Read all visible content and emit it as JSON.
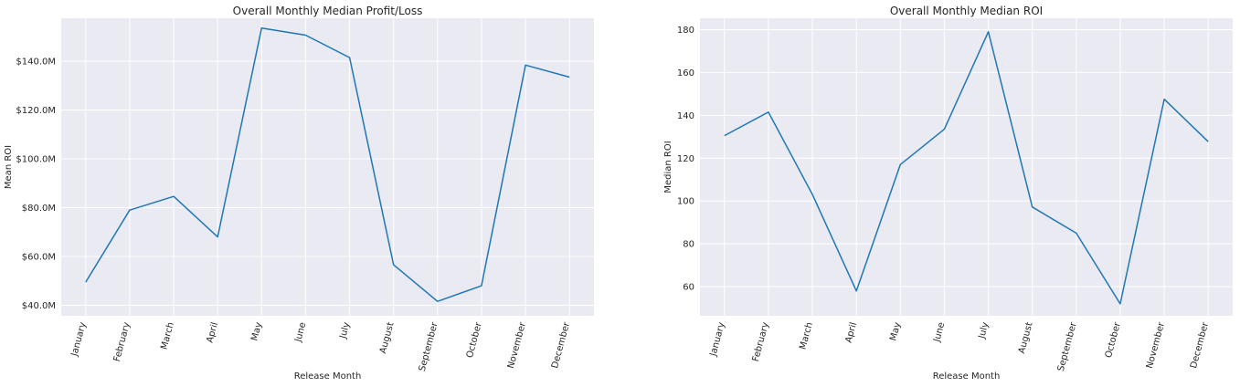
{
  "chart_data": [
    {
      "type": "line",
      "title": "Overall Monthly Median Profit/Loss",
      "xlabel": "Release Month",
      "ylabel": "Mean ROI",
      "categories": [
        "January",
        "February",
        "March",
        "April",
        "May",
        "June",
        "July",
        "August",
        "September",
        "October",
        "November",
        "December"
      ],
      "series": [
        {
          "values": [
            49.5,
            79.0,
            84.6,
            68.0,
            153.6,
            150.7,
            141.5,
            56.6,
            41.6,
            48.0,
            138.4,
            133.5
          ]
        }
      ],
      "ylim": [
        35.7,
        157.6
      ],
      "yticks": [
        40,
        60,
        80,
        100,
        120,
        140
      ],
      "ytick_labels": [
        "$40.0M",
        "$60.0M",
        "$80.0M",
        "$100.0M",
        "$120.0M",
        "$140.0M"
      ],
      "grid": true,
      "color": "#1f77b4",
      "background": "#eaeaf2"
    },
    {
      "type": "line",
      "title": "Overall Monthly Median ROI",
      "xlabel": "Release Month",
      "ylabel": "Median ROI",
      "categories": [
        "January",
        "February",
        "March",
        "April",
        "May",
        "June",
        "July",
        "August",
        "September",
        "October",
        "November",
        "December"
      ],
      "series": [
        {
          "values": [
            130.5,
            141.5,
            103.0,
            58.0,
            117.0,
            133.5,
            179.0,
            97.2,
            85.0,
            52.0,
            147.5,
            127.7
          ]
        }
      ],
      "ylim": [
        46.4,
        185.3
      ],
      "yticks": [
        60,
        80,
        100,
        120,
        140,
        160,
        180
      ],
      "ytick_labels": [
        "60",
        "80",
        "100",
        "120",
        "140",
        "160",
        "180"
      ],
      "grid": true,
      "color": "#1f77b4",
      "background": "#eaeaf2"
    }
  ]
}
